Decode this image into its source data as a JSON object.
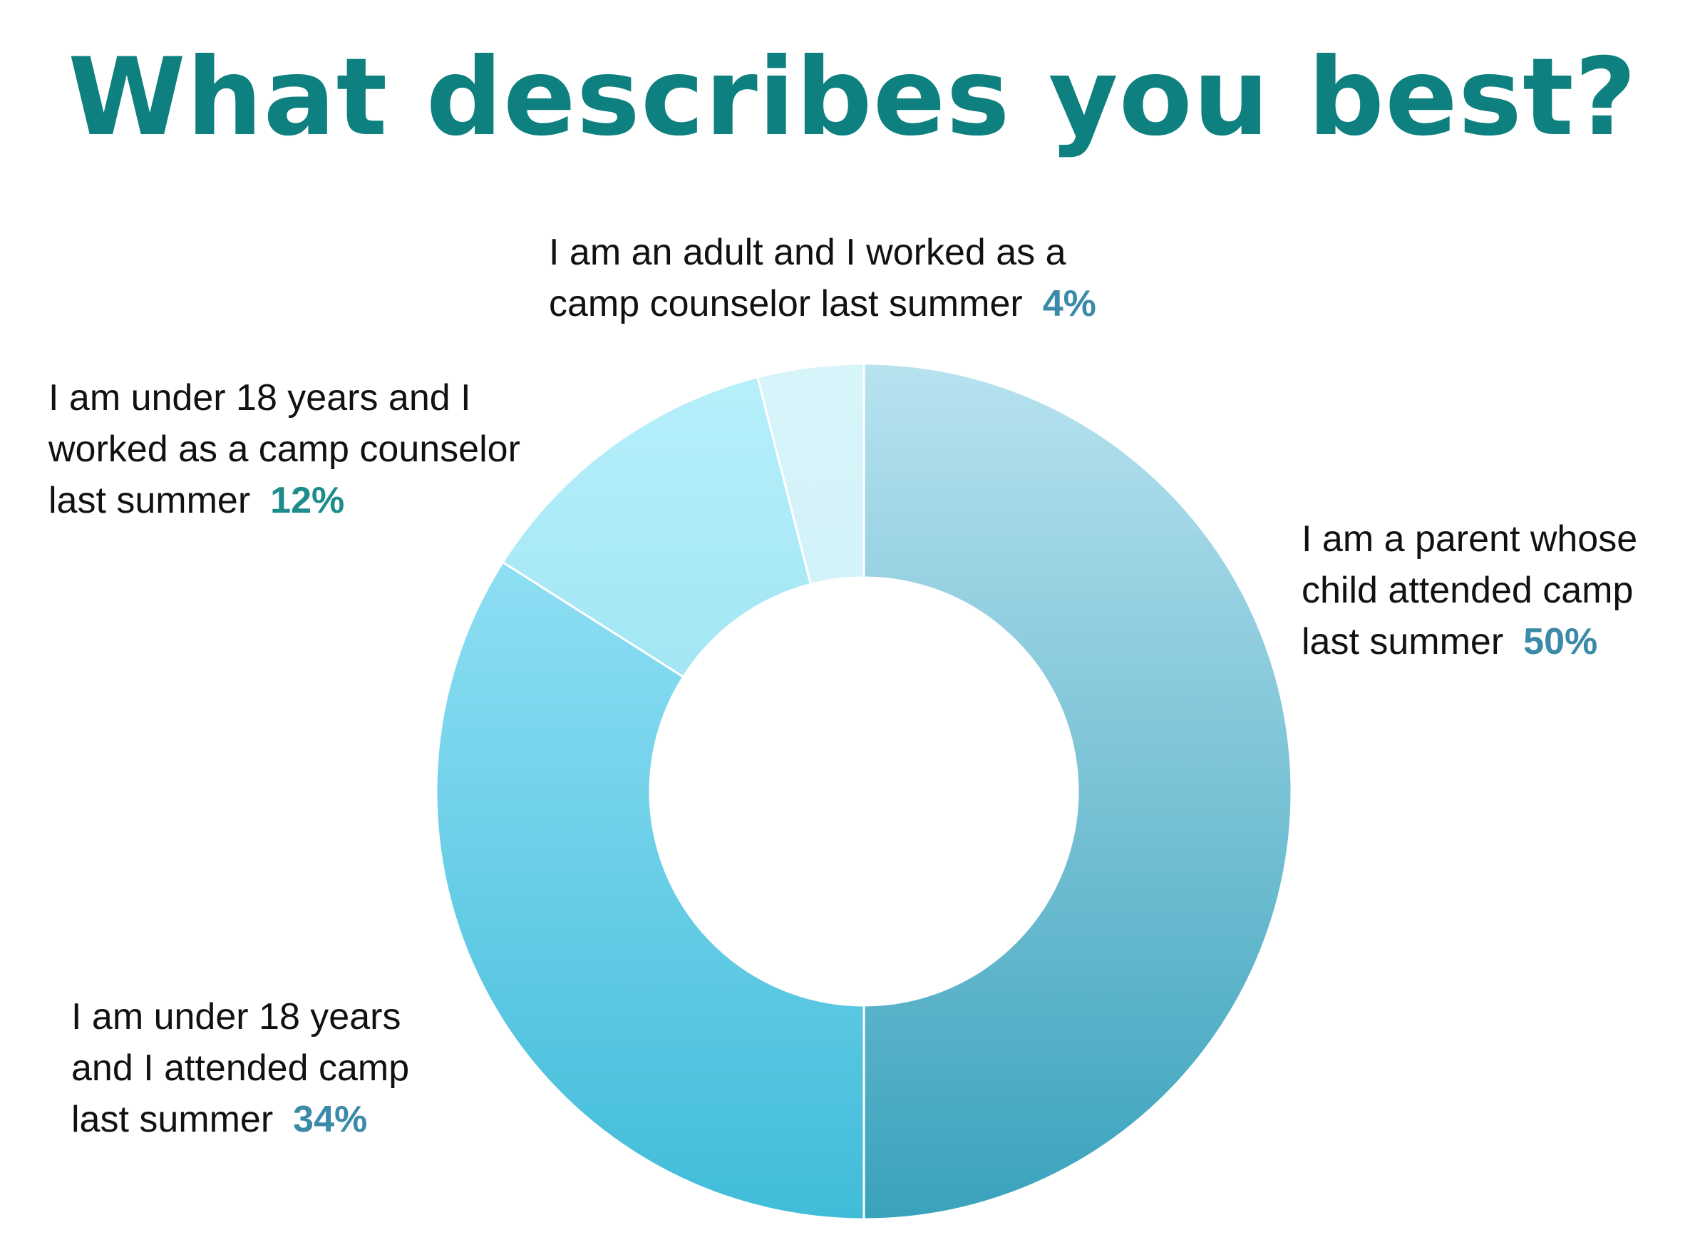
{
  "chart_data": {
    "type": "pie",
    "variant": "donut",
    "title": "What describes you best?",
    "slices": [
      {
        "lines": [
          "I am a parent whose",
          "child attended camp",
          "last summer"
        ],
        "value": 50,
        "value_label": "50%",
        "color_top": "#b8e2ef",
        "color_bottom": "#3aa2bc",
        "pct_color": "#3a8aa8"
      },
      {
        "lines": [
          "I am under 18 years",
          "and I attended camp",
          "last summer"
        ],
        "value": 34,
        "value_label": "34%",
        "color_top": "#a6e9fb",
        "color_bottom": "#40bcd9",
        "pct_color": "#3a8aa8"
      },
      {
        "lines": [
          "I am under 18 years and I",
          "worked as a camp counselor",
          "last summer"
        ],
        "value": 12,
        "value_label": "12%",
        "color_top": "#b7f0fb",
        "color_bottom": "#80d4e8",
        "pct_color": "#1f8c8c"
      },
      {
        "lines": [
          "I am an adult and I worked as a",
          "camp counselor last summer"
        ],
        "value": 4,
        "value_label": "4%",
        "color_top": "#d8f4fb",
        "color_bottom": "#c6ebf5",
        "pct_color": "#3a8aa8"
      }
    ],
    "legend": "none",
    "start_angle": "12 o'clock",
    "direction": "clockwise"
  },
  "colors": {
    "title": "#0f8080",
    "text": "#111111",
    "slice_border": "#ffffff"
  }
}
